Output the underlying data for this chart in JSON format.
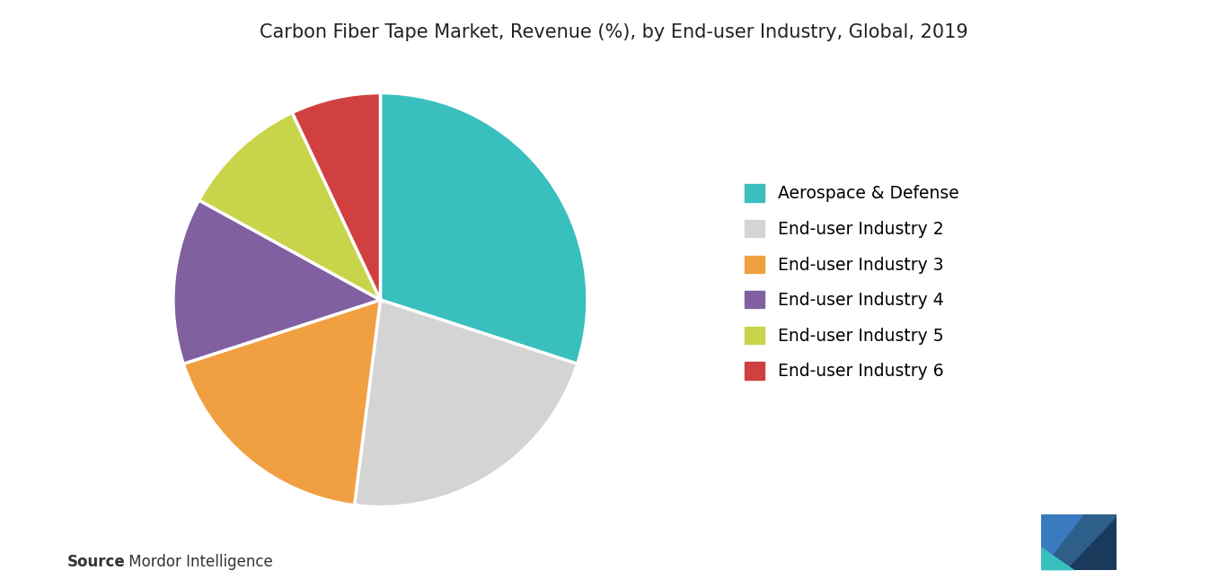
{
  "title": "Carbon Fiber Tape Market, Revenue (%), by End-user Industry, Global, 2019",
  "title_fontsize": 15,
  "slices": [
    {
      "label": "Aerospace & Defense",
      "value": 30,
      "color": "#3abfbf"
    },
    {
      "label": "End-user Industry 2",
      "value": 22,
      "color": "#d4d4d4"
    },
    {
      "label": "End-user Industry 3",
      "value": 18,
      "color": "#f0a040"
    },
    {
      "label": "End-user Industry 4",
      "value": 13,
      "color": "#8060a0"
    },
    {
      "label": "End-user Industry 5",
      "value": 10,
      "color": "#c8d44a"
    },
    {
      "label": "End-user Industry 6",
      "value": 7,
      "color": "#d04040"
    }
  ],
  "legend_fontsize": 13.5,
  "source_bold": "Source",
  "source_rest": " : Mordor Intelligence",
  "background_color": "#ffffff",
  "start_angle": 90,
  "edge_color": "#ffffff",
  "edge_width": 2.5
}
